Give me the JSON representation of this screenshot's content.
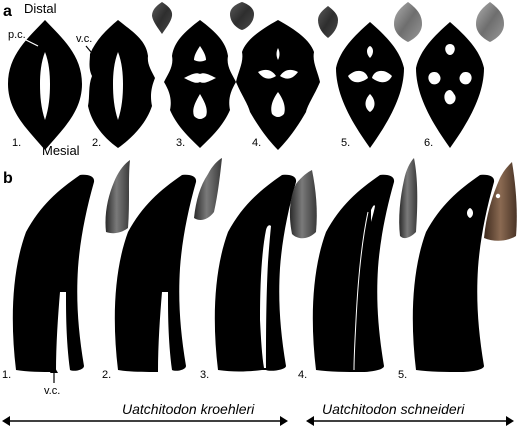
{
  "panel_a": {
    "letter": "a",
    "top_label": "Distal",
    "bottom_label": "Mesial",
    "callout_pc": "p.c.",
    "callout_vc": "v.c.",
    "specimen_numbers": [
      "1.",
      "2.",
      "3.",
      "4.",
      "5.",
      "6."
    ]
  },
  "panel_b": {
    "letter": "b",
    "callout_vc": "v.c.",
    "specimen_numbers": [
      "1.",
      "2.",
      "3.",
      "4.",
      "5."
    ]
  },
  "species": {
    "left": "Uatchitodon kroehleri",
    "right": "Uatchitodon schneideri"
  },
  "colors": {
    "silhouette": "#000000",
    "photo_dark": "#3a3a3a",
    "photo_light": "#8a8a8a"
  }
}
